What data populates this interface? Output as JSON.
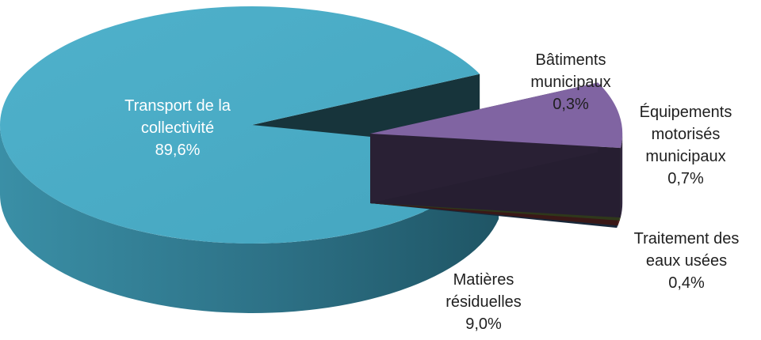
{
  "chart_data": {
    "type": "pie",
    "style": "3d-exploded",
    "slices": [
      {
        "key": "transport",
        "label_lines": [
          "Transport de la",
          "collectivité"
        ],
        "value_text": "89,6%",
        "value": 89.6,
        "color": "#4bacc6"
      },
      {
        "key": "residuelles",
        "label_lines": [
          "Matières",
          "résiduelles"
        ],
        "value_text": "9,0%",
        "value": 9.0,
        "color": "#8064a2"
      },
      {
        "key": "eaux",
        "label_lines": [
          "Traitement des",
          "eaux usées"
        ],
        "value_text": "0,4%",
        "value": 0.4,
        "color": "#9bbb59"
      },
      {
        "key": "equipements",
        "label_lines": [
          "Équipements",
          "motorisés",
          "municipaux"
        ],
        "value_text": "0,7%",
        "value": 0.7,
        "color": "#c0504d"
      },
      {
        "key": "batiments",
        "label_lines": [
          "Bâtiments",
          "municipaux"
        ],
        "value_text": "0,3%",
        "value": 0.3,
        "color": "#4f81bd"
      }
    ]
  }
}
